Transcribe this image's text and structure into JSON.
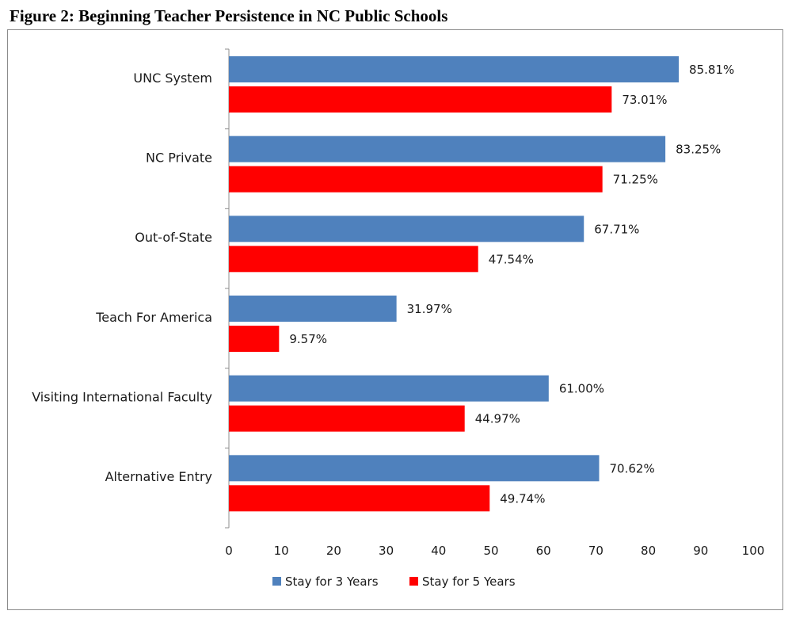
{
  "title": "Figure 2:  Beginning Teacher Persistence in NC Public Schools",
  "chart_data": {
    "type": "bar",
    "orientation": "horizontal",
    "categories": [
      "UNC System",
      "NC Private",
      "Out-of-State",
      "Teach For America",
      "Visiting International Faculty",
      "Alternative Entry"
    ],
    "series": [
      {
        "name": "Stay for 3 Years",
        "color": "#4f81bd",
        "values": [
          85.81,
          83.25,
          67.71,
          31.97,
          61.0,
          70.62
        ],
        "labels": [
          "85.81%",
          "83.25%",
          "67.71%",
          "31.97%",
          "61.00%",
          "70.62%"
        ]
      },
      {
        "name": "Stay for 5 Years",
        "color": "#ff0000",
        "values": [
          73.01,
          71.25,
          47.54,
          9.57,
          44.97,
          49.74
        ],
        "labels": [
          "73.01%",
          "71.25%",
          "47.54%",
          "9.57%",
          "44.97%",
          "49.74%"
        ]
      }
    ],
    "xlim": [
      0,
      100
    ],
    "xticks": [
      "0",
      "10",
      "20",
      "30",
      "40",
      "50",
      "60",
      "70",
      "80",
      "90",
      "100"
    ],
    "grid": false,
    "legend_position": "bottom"
  }
}
